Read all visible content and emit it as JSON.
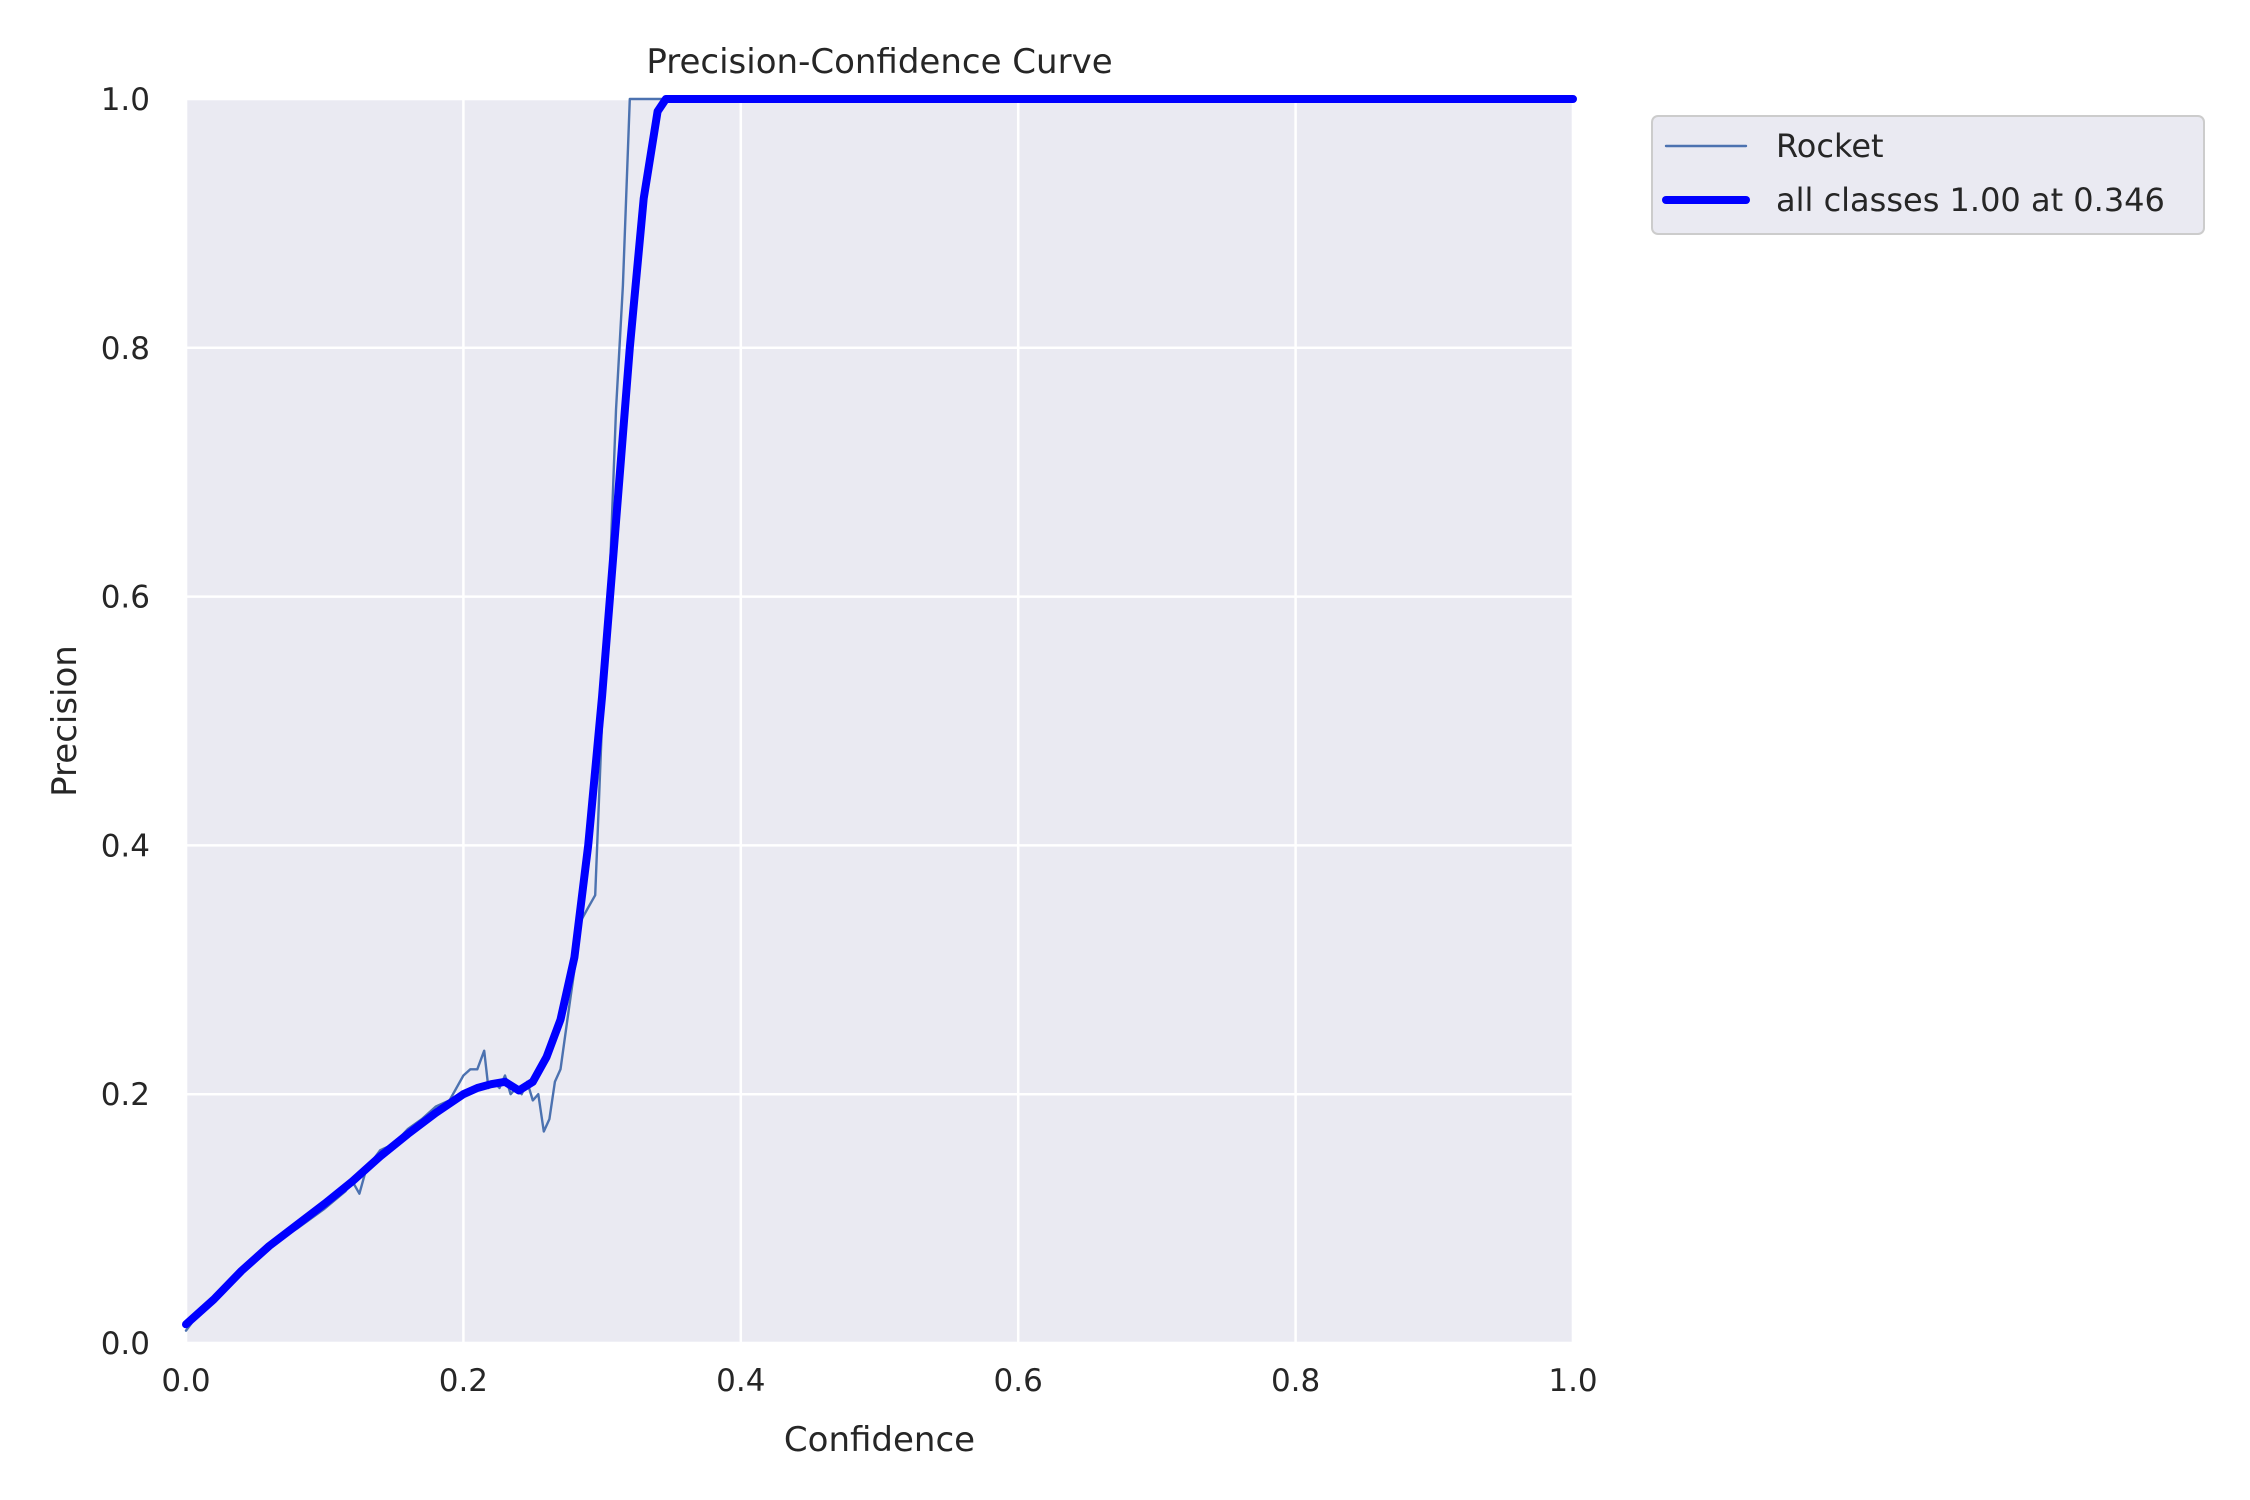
{
  "chart_data": {
    "type": "line",
    "title": "Precision-Confidence Curve",
    "xlabel": "Confidence",
    "ylabel": "Precision",
    "xlim": [
      0,
      1
    ],
    "ylim": [
      0,
      1
    ],
    "grid": true,
    "legend_position": "outside upper-right",
    "x_ticks": [
      0.0,
      0.2,
      0.4,
      0.6,
      0.8,
      1.0
    ],
    "y_ticks": [
      0.0,
      0.2,
      0.4,
      0.6,
      0.8,
      1.0
    ],
    "x_tick_labels": [
      "0.0",
      "0.2",
      "0.4",
      "0.6",
      "0.8",
      "1.0"
    ],
    "y_tick_labels": [
      "0.0",
      "0.2",
      "0.4",
      "0.6",
      "0.8",
      "1.0"
    ],
    "series": [
      {
        "name": "Rocket",
        "color": "#4c72b0",
        "style": "thin",
        "x": [
          0.0,
          0.01,
          0.02,
          0.04,
          0.06,
          0.08,
          0.1,
          0.115,
          0.12,
          0.125,
          0.13,
          0.14,
          0.15,
          0.16,
          0.17,
          0.18,
          0.19,
          0.2,
          0.205,
          0.21,
          0.215,
          0.218,
          0.222,
          0.226,
          0.23,
          0.234,
          0.238,
          0.242,
          0.246,
          0.25,
          0.254,
          0.258,
          0.262,
          0.266,
          0.27,
          0.275,
          0.28,
          0.285,
          0.29,
          0.295,
          0.3,
          0.305,
          0.31,
          0.315,
          0.32,
          0.33,
          0.35,
          0.4,
          0.6,
          0.8,
          1.0
        ],
        "y": [
          0.01,
          0.025,
          0.035,
          0.058,
          0.078,
          0.092,
          0.108,
          0.122,
          0.13,
          0.12,
          0.14,
          0.155,
          0.16,
          0.172,
          0.18,
          0.19,
          0.195,
          0.215,
          0.22,
          0.22,
          0.235,
          0.205,
          0.21,
          0.205,
          0.215,
          0.2,
          0.205,
          0.2,
          0.21,
          0.195,
          0.2,
          0.17,
          0.18,
          0.21,
          0.22,
          0.26,
          0.3,
          0.34,
          0.35,
          0.36,
          0.5,
          0.6,
          0.75,
          0.85,
          1.0,
          1.0,
          1.0,
          1.0,
          1.0,
          1.0,
          1.0
        ]
      },
      {
        "name": "all classes 1.00 at 0.346",
        "color": "#0000ff",
        "style": "thick",
        "x": [
          0.0,
          0.02,
          0.04,
          0.06,
          0.08,
          0.1,
          0.12,
          0.14,
          0.16,
          0.18,
          0.2,
          0.21,
          0.22,
          0.23,
          0.24,
          0.25,
          0.26,
          0.27,
          0.28,
          0.29,
          0.3,
          0.31,
          0.32,
          0.33,
          0.34,
          0.346,
          0.4,
          0.6,
          0.8,
          1.0
        ],
        "y": [
          0.015,
          0.035,
          0.058,
          0.078,
          0.095,
          0.112,
          0.13,
          0.15,
          0.168,
          0.185,
          0.2,
          0.205,
          0.208,
          0.21,
          0.203,
          0.21,
          0.23,
          0.26,
          0.31,
          0.4,
          0.52,
          0.66,
          0.8,
          0.92,
          0.99,
          1.0,
          1.0,
          1.0,
          1.0,
          1.0
        ]
      }
    ]
  }
}
